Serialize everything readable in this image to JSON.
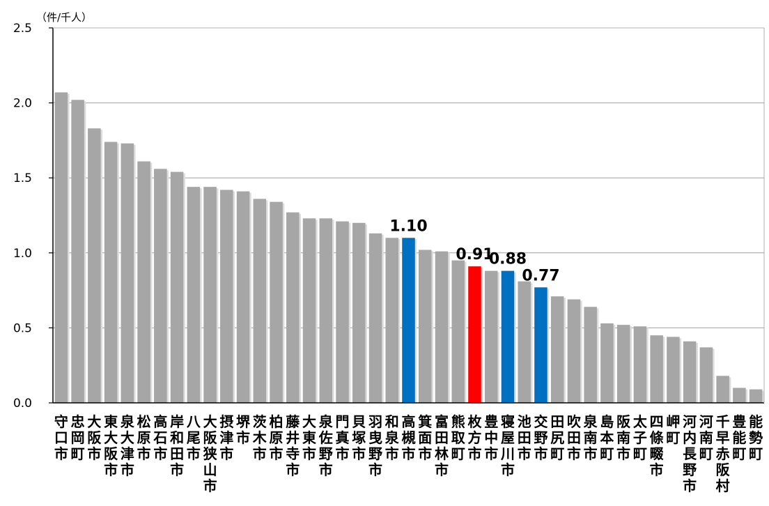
{
  "chart_data": {
    "type": "bar",
    "unit_label": "（件/千人）",
    "categories": [
      "守口市",
      "忠岡町",
      "大阪市",
      "東大阪市",
      "泉大津市",
      "松原市",
      "高石市",
      "岸和田市",
      "八尾市",
      "大阪狭山市",
      "摂津市",
      "堺市",
      "茨木市",
      "柏原市",
      "藤井寺市",
      "大東市",
      "泉佐野市",
      "門真市",
      "貝塚市",
      "羽曳野市",
      "和泉市",
      "高槻市",
      "箕面市",
      "富田林市",
      "熊取町",
      "枚方市",
      "豊中市",
      "寝屋川市",
      "池田市",
      "交野市",
      "田尻町",
      "吹田市",
      "泉南市",
      "島本町",
      "阪南市",
      "太子町",
      "四條畷市",
      "岬町",
      "河内長野市",
      "河南町",
      "千早赤阪村",
      "豊能町",
      "能勢町"
    ],
    "values": [
      2.07,
      2.02,
      1.83,
      1.74,
      1.73,
      1.61,
      1.56,
      1.54,
      1.44,
      1.44,
      1.42,
      1.41,
      1.36,
      1.34,
      1.27,
      1.23,
      1.23,
      1.21,
      1.2,
      1.13,
      1.1,
      1.1,
      1.02,
      1.01,
      0.95,
      0.91,
      0.88,
      0.88,
      0.81,
      0.77,
      0.71,
      0.69,
      0.64,
      0.53,
      0.52,
      0.51,
      0.45,
      0.44,
      0.41,
      0.37,
      0.18,
      0.1,
      0.09
    ],
    "colors": [
      "#a6a6a6",
      "#a6a6a6",
      "#a6a6a6",
      "#a6a6a6",
      "#a6a6a6",
      "#a6a6a6",
      "#a6a6a6",
      "#a6a6a6",
      "#a6a6a6",
      "#a6a6a6",
      "#a6a6a6",
      "#a6a6a6",
      "#a6a6a6",
      "#a6a6a6",
      "#a6a6a6",
      "#a6a6a6",
      "#a6a6a6",
      "#a6a6a6",
      "#a6a6a6",
      "#a6a6a6",
      "#a6a6a6",
      "#0070c0",
      "#a6a6a6",
      "#a6a6a6",
      "#a6a6a6",
      "#ff0000",
      "#a6a6a6",
      "#0070c0",
      "#a6a6a6",
      "#0070c0",
      "#a6a6a6",
      "#a6a6a6",
      "#a6a6a6",
      "#a6a6a6",
      "#a6a6a6",
      "#a6a6a6",
      "#a6a6a6",
      "#a6a6a6",
      "#a6a6a6",
      "#a6a6a6",
      "#a6a6a6",
      "#a6a6a6",
      "#a6a6a6"
    ],
    "data_labels": [
      {
        "category": "高槻市",
        "text": "1.10"
      },
      {
        "category": "枚方市",
        "text": "0.91"
      },
      {
        "category": "寝屋川市",
        "text": "0.88"
      },
      {
        "category": "交野市",
        "text": "0.77"
      }
    ],
    "ylim": [
      0,
      2.5
    ],
    "yticks": [
      "0.0",
      "0.5",
      "1.0",
      "1.5",
      "2.0",
      "2.5"
    ],
    "grid": true,
    "legend": "none"
  }
}
